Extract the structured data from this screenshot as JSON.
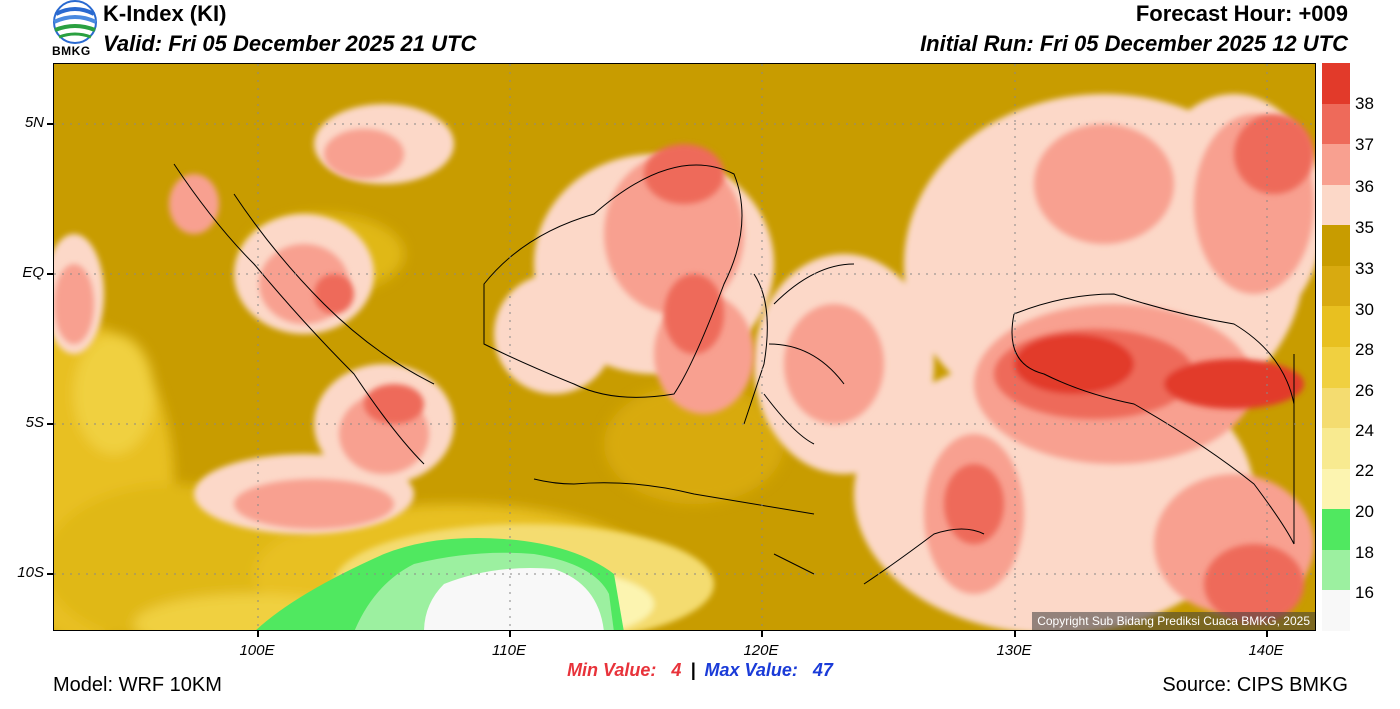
{
  "header": {
    "title": "K-Index (KI)",
    "valid": "Valid: Fri 05 December 2025 21 UTC",
    "forecast_hour": "Forecast Hour: +009",
    "initial_run": "Initial Run: Fri 05 December 2025 12 UTC",
    "logo_text": "BMKG"
  },
  "map": {
    "y_labels": [
      "5N",
      "EQ",
      "5S",
      "10S"
    ],
    "x_labels": [
      "100E",
      "110E",
      "120E",
      "130E",
      "140E"
    ],
    "copyright": "Copyright Sub Bidang Prediksi Cuaca BMKG, 2025"
  },
  "colorbar": {
    "labels": [
      "38",
      "37",
      "36",
      "35",
      "33",
      "30",
      "28",
      "26",
      "24",
      "22",
      "20",
      "18",
      "16"
    ],
    "colors": [
      "#e23a2a",
      "#ee6a5a",
      "#f8a090",
      "#fcd8c8",
      "#c89c00",
      "#d8aa10",
      "#e8c020",
      "#f0d040",
      "#f4dc70",
      "#f8ea90",
      "#fcf4b0",
      "#50e860",
      "#9cf0a0",
      "#f8f8f8"
    ]
  },
  "stats": {
    "min_label": "Min Value:",
    "min_value": "4",
    "separator": "|",
    "max_label": "Max Value:",
    "max_value": "47"
  },
  "footer": {
    "model": "Model: WRF 10KM",
    "source": "Source: CIPS BMKG"
  }
}
